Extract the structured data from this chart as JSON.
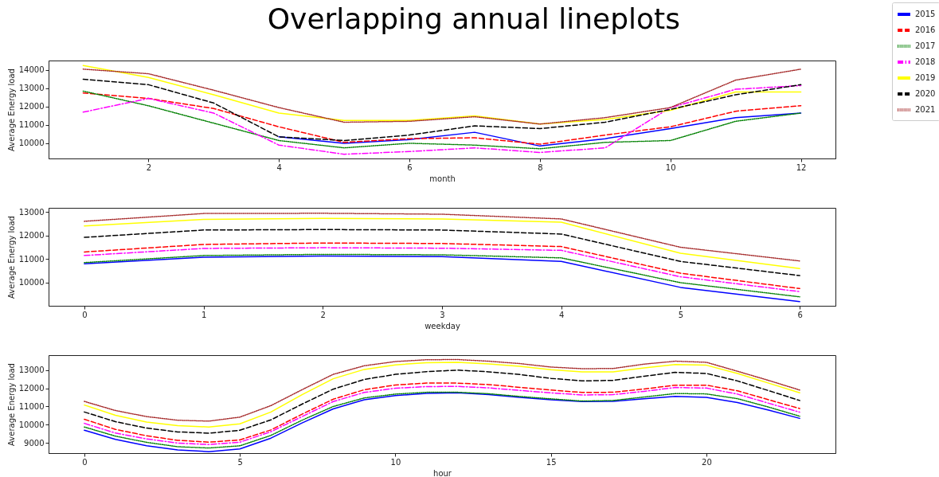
{
  "chart_data": [
    {
      "type": "line",
      "title": "Overlapping annual lineplots",
      "xlabel": "month",
      "ylabel": "Average Energy load",
      "x": [
        1,
        2,
        3,
        4,
        5,
        6,
        7,
        8,
        9,
        10,
        11,
        12
      ],
      "xlim": [
        0.47,
        12.53
      ],
      "ylim": [
        9170,
        14520
      ],
      "xticks": [
        2,
        4,
        6,
        8,
        10,
        12
      ],
      "yticks": [
        10000,
        11000,
        12000,
        13000,
        14000
      ],
      "legend": "top right",
      "series": [
        {
          "name": "2015",
          "color": "#0000ff",
          "line_style": "solid",
          "values": [
            null,
            null,
            null,
            10350,
            10000,
            10200,
            10600,
            9850,
            10250,
            10800,
            11400,
            11650
          ]
        },
        {
          "name": "2016",
          "color": "#ff0000",
          "line_style": "dashed",
          "values": [
            12750,
            12450,
            11900,
            10900,
            10050,
            10250,
            10300,
            9950,
            10450,
            10900,
            11750,
            12050
          ]
        },
        {
          "name": "2017",
          "color": "#008000",
          "line_style": "dotted",
          "values": [
            12850,
            12050,
            11100,
            10150,
            9750,
            10000,
            9900,
            9700,
            10050,
            10150,
            11200,
            11650
          ]
        },
        {
          "name": "2018",
          "color": "#ff00ff",
          "line_style": "dashdot",
          "values": [
            11700,
            12450,
            11650,
            9900,
            9400,
            9550,
            9750,
            9500,
            9750,
            11950,
            12950,
            13150
          ]
        },
        {
          "name": "2019",
          "color": "#ffff00",
          "line_style": "solid",
          "values": [
            14250,
            13600,
            12650,
            11650,
            11250,
            11250,
            11500,
            11050,
            11300,
            11800,
            12800,
            12800
          ]
        },
        {
          "name": "2020",
          "color": "#000000",
          "line_style": "dashed",
          "values": [
            13500,
            13200,
            12200,
            10350,
            10150,
            10450,
            10950,
            10800,
            11150,
            11850,
            12650,
            13200
          ]
        },
        {
          "name": "2021",
          "color": "#a52a2a",
          "line_style": "dotted",
          "values": [
            14050,
            13800,
            12900,
            11950,
            11150,
            11200,
            11450,
            11050,
            11400,
            11950,
            13450,
            14050
          ]
        }
      ]
    },
    {
      "type": "line",
      "xlabel": "weekday",
      "ylabel": "Average Energy load",
      "x": [
        0,
        1,
        2,
        3,
        4,
        5,
        6
      ],
      "xlim": [
        -0.3,
        6.3
      ],
      "ylim": [
        9020,
        13170
      ],
      "xticks": [
        0,
        1,
        2,
        3,
        4,
        5,
        6
      ],
      "yticks": [
        10000,
        11000,
        12000,
        13000
      ],
      "series": [
        {
          "name": "2015",
          "color": "#0000ff",
          "line_style": "solid",
          "values": [
            10800,
            11080,
            11130,
            11100,
            10900,
            9800,
            9200
          ]
        },
        {
          "name": "2016",
          "color": "#ff0000",
          "line_style": "dashed",
          "values": [
            11300,
            11620,
            11680,
            11660,
            11530,
            10400,
            9750
          ]
        },
        {
          "name": "2017",
          "color": "#008000",
          "line_style": "dotted",
          "values": [
            10850,
            11150,
            11200,
            11180,
            11050,
            10000,
            9400
          ]
        },
        {
          "name": "2018",
          "color": "#ff00ff",
          "line_style": "dashdot",
          "values": [
            11150,
            11450,
            11480,
            11460,
            11370,
            10250,
            9620
          ]
        },
        {
          "name": "2019",
          "color": "#ffff00",
          "line_style": "solid",
          "values": [
            12400,
            12680,
            12720,
            12700,
            12560,
            11250,
            10600
          ]
        },
        {
          "name": "2020",
          "color": "#000000",
          "line_style": "dashed",
          "values": [
            11920,
            12230,
            12250,
            12230,
            12060,
            10900,
            10300
          ]
        },
        {
          "name": "2021",
          "color": "#a52a2a",
          "line_style": "dotted",
          "values": [
            12600,
            12930,
            12940,
            12900,
            12700,
            11500,
            10920
          ]
        }
      ]
    },
    {
      "type": "line",
      "xlabel": "hour",
      "ylabel": "Average Energy load",
      "x": [
        0,
        1,
        2,
        3,
        4,
        5,
        6,
        7,
        8,
        9,
        10,
        11,
        12,
        13,
        14,
        15,
        16,
        17,
        18,
        19,
        20,
        21,
        22,
        23
      ],
      "xlim": [
        -1.15,
        24.15
      ],
      "ylim": [
        8450,
        13810
      ],
      "xticks": [
        0,
        5,
        10,
        15,
        20
      ],
      "yticks": [
        9000,
        10000,
        11000,
        12000,
        13000
      ],
      "series": [
        {
          "name": "2015",
          "color": "#0000ff",
          "line_style": "solid",
          "values": [
            9700,
            9200,
            8850,
            8620,
            8530,
            8680,
            9270,
            10100,
            10870,
            11370,
            11600,
            11720,
            11750,
            11650,
            11500,
            11370,
            11270,
            11280,
            11420,
            11550,
            11500,
            11220,
            10800,
            10350
          ]
        },
        {
          "name": "2016",
          "color": "#ff0000",
          "line_style": "dashed",
          "values": [
            10300,
            9750,
            9400,
            9150,
            9050,
            9170,
            9720,
            10580,
            11400,
            11920,
            12180,
            12280,
            12280,
            12200,
            12050,
            11900,
            11770,
            11780,
            11960,
            12170,
            12170,
            11860,
            11370,
            10890
          ]
        },
        {
          "name": "2017",
          "color": "#008000",
          "line_style": "dotted",
          "values": [
            9880,
            9380,
            9040,
            8800,
            8730,
            8850,
            9420,
            10250,
            11000,
            11470,
            11680,
            11780,
            11780,
            11700,
            11550,
            11420,
            11300,
            11330,
            11520,
            11710,
            11690,
            11430,
            10970,
            10470
          ]
        },
        {
          "name": "2018",
          "color": "#ff00ff",
          "line_style": "dashdot",
          "values": [
            10080,
            9550,
            9230,
            9000,
            8920,
            9050,
            9620,
            10450,
            11270,
            11770,
            12000,
            12090,
            12100,
            12020,
            11880,
            11750,
            11630,
            11650,
            11830,
            12040,
            12010,
            11680,
            11180,
            10690
          ]
        },
        {
          "name": "2019",
          "color": "#ffff00",
          "line_style": "solid",
          "values": [
            11080,
            10520,
            10150,
            9950,
            9880,
            10050,
            10700,
            11650,
            12520,
            13030,
            13280,
            13400,
            13420,
            13330,
            13200,
            13010,
            12890,
            12900,
            13110,
            13300,
            13260,
            12810,
            12280,
            11750
          ]
        },
        {
          "name": "2020",
          "color": "#000000",
          "line_style": "dashed",
          "values": [
            10700,
            10170,
            9820,
            9610,
            9540,
            9700,
            10270,
            11130,
            11950,
            12480,
            12760,
            12910,
            12990,
            12900,
            12750,
            12540,
            12400,
            12430,
            12660,
            12870,
            12810,
            12400,
            11870,
            11330
          ]
        },
        {
          "name": "2021",
          "color": "#a52a2a",
          "line_style": "dotted",
          "values": [
            11280,
            10780,
            10450,
            10250,
            10200,
            10420,
            11050,
            11920,
            12760,
            13230,
            13460,
            13560,
            13570,
            13480,
            13350,
            13160,
            13070,
            13080,
            13320,
            13480,
            13420,
            12930,
            12430,
            11900
          ]
        }
      ]
    }
  ]
}
